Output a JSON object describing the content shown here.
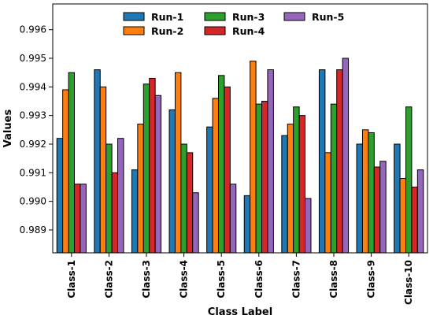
{
  "chart_data": {
    "type": "bar",
    "title": "",
    "xlabel": "Class Label",
    "ylabel": "Values",
    "ylim": [
      0.9882,
      0.9969
    ],
    "yticks": [
      "0.989",
      "0.990",
      "0.991",
      "0.992",
      "0.993",
      "0.994",
      "0.995",
      "0.996"
    ],
    "categories": [
      "Class-1",
      "Class-2",
      "Class-3",
      "Class-4",
      "Class-5",
      "Class-6",
      "Class-7",
      "Class-8",
      "Class-9",
      "Class-10"
    ],
    "legend_position": "top-right",
    "series": [
      {
        "name": "Run-1",
        "color": "#1f77b4",
        "values": [
          0.9922,
          0.9946,
          0.9911,
          0.9932,
          0.9926,
          0.9902,
          0.9923,
          0.9946,
          0.992,
          0.992
        ]
      },
      {
        "name": "Run-2",
        "color": "#ff7f0e",
        "values": [
          0.9939,
          0.994,
          0.9927,
          0.9945,
          0.9936,
          0.9949,
          0.9927,
          0.9917,
          0.9925,
          0.9908
        ]
      },
      {
        "name": "Run-3",
        "color": "#2ca02c",
        "values": [
          0.9945,
          0.992,
          0.9941,
          0.992,
          0.9944,
          0.9934,
          0.9933,
          0.9934,
          0.9924,
          0.9933
        ]
      },
      {
        "name": "Run-4",
        "color": "#d62728",
        "values": [
          0.9906,
          0.991,
          0.9943,
          0.9917,
          0.994,
          0.9935,
          0.993,
          0.9946,
          0.9912,
          0.9905
        ]
      },
      {
        "name": "Run-5",
        "color": "#9467bd",
        "values": [
          0.9906,
          0.9922,
          0.9937,
          0.9903,
          0.9906,
          0.9946,
          0.9901,
          0.995,
          0.9914,
          0.9911
        ]
      }
    ]
  }
}
